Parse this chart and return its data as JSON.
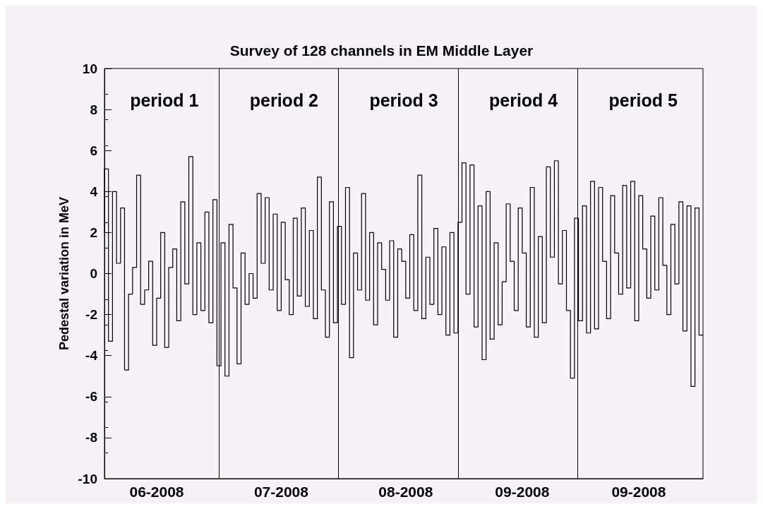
{
  "chart_data": {
    "type": "step",
    "title": "Survey of 128 channels in EM Middle Layer",
    "ylabel": "Pedestal variation in MeV",
    "categories": [
      null,
      null,
      null,
      null,
      null,
      null,
      null,
      null,
      null,
      null,
      null,
      null,
      null,
      "06-2008",
      null,
      null,
      null,
      null,
      null,
      null,
      null,
      null,
      null,
      null,
      null,
      null,
      null,
      null,
      null,
      null,
      null,
      null,
      null,
      null,
      null,
      null,
      null,
      null,
      null,
      null,
      null,
      null,
      null,
      null,
      "07-2008",
      null,
      null,
      null,
      null,
      null,
      null,
      null,
      null,
      null,
      null,
      null,
      null,
      null,
      null,
      null,
      null,
      null,
      null,
      null,
      null,
      null,
      null,
      null,
      null,
      null,
      null,
      null,
      null,
      null,
      null,
      "08-2008",
      null,
      null,
      null,
      null,
      null,
      null,
      null,
      null,
      null,
      null,
      null,
      null,
      null,
      null,
      null,
      null,
      null,
      null,
      null,
      null,
      null,
      null,
      null,
      null,
      null,
      null,
      null,
      null,
      "09-2008",
      null,
      null,
      null,
      null,
      null,
      null,
      null,
      null,
      null,
      null,
      null,
      null,
      null,
      null,
      null,
      null,
      null,
      null,
      null,
      null,
      null,
      null,
      null,
      null,
      null,
      null,
      null,
      null,
      "09-2008",
      null,
      null,
      null,
      null,
      null,
      null,
      null,
      null,
      null,
      null,
      null,
      null,
      null,
      null,
      null,
      null
    ],
    "ylim": [
      -10,
      10
    ],
    "yticks": [
      -10,
      -8,
      -6,
      -4,
      -2,
      0,
      2,
      4,
      6,
      8,
      10
    ],
    "grid": false,
    "marker": "none",
    "line_style": "solid",
    "annotations": [
      "period 1",
      "period 2",
      "period 3",
      "period 4",
      "period 5"
    ],
    "series": [
      {
        "color": "#000000",
        "values": [
          2.0,
          5.1,
          -3.3,
          4.0,
          0.5,
          3.2,
          -4.7,
          -1.0,
          0.3,
          4.8,
          -1.5,
          -0.8,
          0.6,
          -3.5,
          -1.2,
          2.0,
          -3.6,
          0.3,
          1.2,
          -2.3,
          3.5,
          -0.5,
          5.7,
          -2.0,
          1.5,
          -1.8,
          3.0,
          -2.4,
          3.6,
          -4.5,
          1.5,
          -5.0,
          2.4,
          -0.7,
          -4.4,
          1.0,
          -1.5,
          0.0,
          -1.2,
          3.9,
          0.5,
          3.7,
          -0.8,
          2.9,
          -1.8,
          2.5,
          -0.3,
          -2.0,
          2.7,
          -1.1,
          3.2,
          -1.6,
          2.1,
          -2.2,
          4.7,
          -0.8,
          -3.1,
          3.5,
          -2.4,
          2.3,
          -1.5,
          4.2,
          -4.1,
          1.0,
          -0.8,
          3.9,
          -1.3,
          2.0,
          -2.5,
          1.5,
          0.2,
          -1.3,
          1.6,
          -3.1,
          1.2,
          0.6,
          -1.2,
          1.9,
          -1.8,
          4.8,
          -2.2,
          0.8,
          -1.5,
          2.2,
          -2.0,
          1.3,
          -3.0,
          2.0,
          -2.9,
          2.5,
          5.4,
          -1.0,
          5.3,
          -2.6,
          3.3,
          -4.2,
          4.0,
          -3.2,
          1.5,
          -2.5,
          -0.4,
          3.4,
          0.6,
          -1.8,
          3.2,
          1.0,
          -2.6,
          4.2,
          -3.1,
          1.8,
          -2.4,
          5.2,
          0.8,
          5.5,
          -0.5,
          2.1,
          -1.8,
          -5.1,
          2.7,
          -2.3,
          3.3,
          -2.9,
          4.5,
          -2.7,
          4.2,
          0.6,
          -2.2,
          3.8,
          1.0,
          -1.0,
          4.3,
          -0.7,
          4.5,
          -2.3,
          3.8,
          1.2,
          -1.2,
          2.8,
          -0.8,
          3.7,
          0.4,
          -2.0,
          2.4,
          -0.5,
          3.5,
          -2.8,
          3.3,
          -5.5,
          3.2,
          -3.0
        ]
      }
    ]
  }
}
